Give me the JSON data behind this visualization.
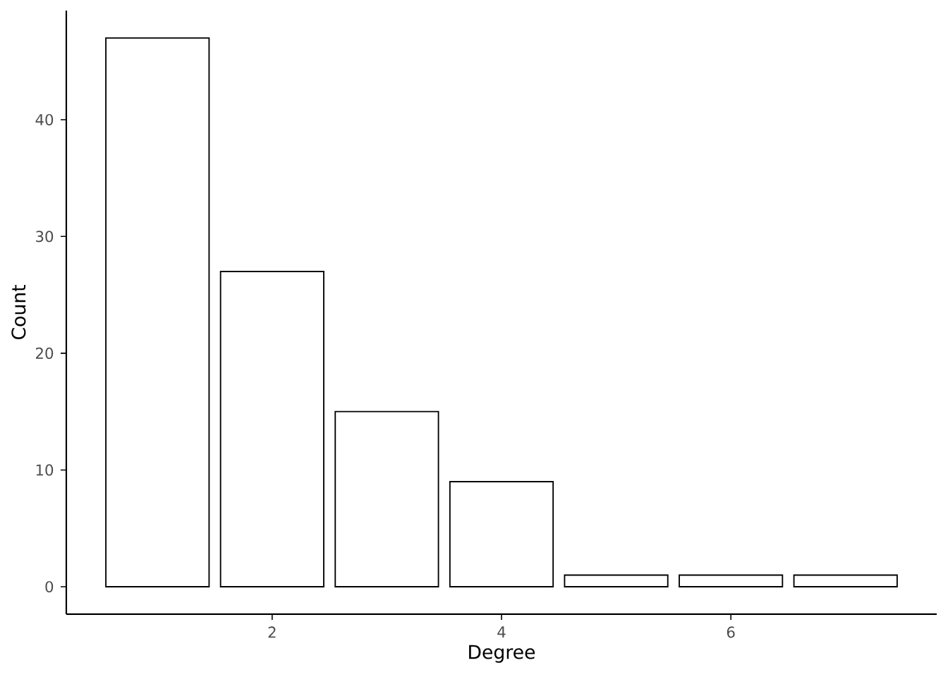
{
  "chart_data": {
    "type": "bar",
    "xlabel": "Degree",
    "ylabel": "Count",
    "x": [
      1,
      2,
      3,
      4,
      5,
      6,
      7
    ],
    "values": [
      47,
      27,
      15,
      9,
      1,
      1,
      1
    ],
    "color": "#ffffff",
    "xlim": [
      0.205,
      7.795
    ],
    "ylim": [
      -2.35,
      49.35
    ],
    "xticks": [
      2,
      4,
      6
    ],
    "yticks": [
      0,
      10,
      20,
      30,
      40
    ]
  }
}
